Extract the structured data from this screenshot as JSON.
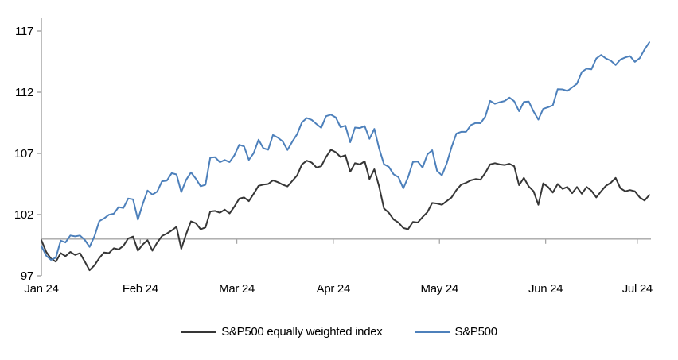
{
  "legend": {
    "items": [
      {
        "label": "S&P500 equally weighted index",
        "series": "sp500-equal-weight"
      },
      {
        "label": "S&P500",
        "series": "sp500"
      }
    ]
  },
  "chart_data": {
    "type": "line",
    "title": "",
    "xlabel": "",
    "ylabel": "",
    "ylim": [
      97,
      118
    ],
    "y_ticks": [
      97,
      102,
      107,
      112,
      117
    ],
    "baseline_value": 100,
    "grid": false,
    "legend_position": "bottom-center",
    "axis_color": "#999999",
    "baseline_color": "#a6a6a6",
    "x_ticks": [
      {
        "label": "Jan 24",
        "index": 0
      },
      {
        "label": "Feb 24",
        "index": 21
      },
      {
        "label": "Mar 24",
        "index": 41
      },
      {
        "label": "Apr 24",
        "index": 61
      },
      {
        "label": "May 24",
        "index": 83
      },
      {
        "label": "Jun 24",
        "index": 105
      },
      {
        "label": "Jul 24",
        "index": 124
      }
    ],
    "x": [
      "2024-01-02",
      "2024-01-03",
      "2024-01-04",
      "2024-01-05",
      "2024-01-08",
      "2024-01-09",
      "2024-01-10",
      "2024-01-11",
      "2024-01-12",
      "2024-01-16",
      "2024-01-17",
      "2024-01-18",
      "2024-01-19",
      "2024-01-22",
      "2024-01-23",
      "2024-01-24",
      "2024-01-25",
      "2024-01-26",
      "2024-01-29",
      "2024-01-30",
      "2024-01-31",
      "2024-02-01",
      "2024-02-02",
      "2024-02-05",
      "2024-02-06",
      "2024-02-07",
      "2024-02-08",
      "2024-02-09",
      "2024-02-12",
      "2024-02-13",
      "2024-02-14",
      "2024-02-15",
      "2024-02-16",
      "2024-02-20",
      "2024-02-21",
      "2024-02-22",
      "2024-02-23",
      "2024-02-26",
      "2024-02-27",
      "2024-02-28",
      "2024-02-29",
      "2024-03-01",
      "2024-03-04",
      "2024-03-05",
      "2024-03-06",
      "2024-03-07",
      "2024-03-08",
      "2024-03-11",
      "2024-03-12",
      "2024-03-13",
      "2024-03-14",
      "2024-03-15",
      "2024-03-18",
      "2024-03-19",
      "2024-03-20",
      "2024-03-21",
      "2024-03-22",
      "2024-03-25",
      "2024-03-26",
      "2024-03-27",
      "2024-03-28",
      "2024-04-01",
      "2024-04-02",
      "2024-04-03",
      "2024-04-04",
      "2024-04-05",
      "2024-04-08",
      "2024-04-09",
      "2024-04-10",
      "2024-04-11",
      "2024-04-12",
      "2024-04-15",
      "2024-04-16",
      "2024-04-17",
      "2024-04-18",
      "2024-04-19",
      "2024-04-22",
      "2024-04-23",
      "2024-04-24",
      "2024-04-25",
      "2024-04-26",
      "2024-04-29",
      "2024-04-30",
      "2024-05-01",
      "2024-05-02",
      "2024-05-03",
      "2024-05-06",
      "2024-05-07",
      "2024-05-08",
      "2024-05-09",
      "2024-05-10",
      "2024-05-13",
      "2024-05-14",
      "2024-05-15",
      "2024-05-16",
      "2024-05-17",
      "2024-05-20",
      "2024-05-21",
      "2024-05-22",
      "2024-05-23",
      "2024-05-24",
      "2024-05-28",
      "2024-05-29",
      "2024-05-30",
      "2024-05-31",
      "2024-06-03",
      "2024-06-04",
      "2024-06-05",
      "2024-06-06",
      "2024-06-07",
      "2024-06-10",
      "2024-06-11",
      "2024-06-12",
      "2024-06-13",
      "2024-06-14",
      "2024-06-17",
      "2024-06-18",
      "2024-06-20",
      "2024-06-21",
      "2024-06-24",
      "2024-06-25",
      "2024-06-26",
      "2024-06-27",
      "2024-06-28",
      "2024-07-01",
      "2024-07-02",
      "2024-07-03"
    ],
    "series": [
      {
        "name": "S&P500 equally weighted index",
        "color": "#363636",
        "values": [
          99.9,
          98.95,
          98.4,
          98.15,
          98.85,
          98.6,
          98.95,
          98.7,
          98.85,
          98.15,
          97.45,
          97.85,
          98.45,
          98.9,
          98.85,
          99.25,
          99.15,
          99.45,
          100.05,
          100.2,
          99.05,
          99.55,
          99.9,
          99.05,
          99.7,
          100.25,
          100.45,
          100.7,
          101.0,
          99.2,
          100.4,
          101.45,
          101.3,
          100.8,
          100.95,
          102.25,
          102.3,
          102.15,
          102.4,
          102.1,
          102.65,
          103.3,
          103.4,
          103.1,
          103.7,
          104.35,
          104.45,
          104.5,
          104.8,
          104.65,
          104.45,
          104.3,
          104.75,
          105.2,
          106.1,
          106.4,
          106.25,
          105.85,
          105.95,
          106.7,
          107.3,
          107.1,
          106.7,
          106.85,
          105.5,
          106.2,
          106.1,
          106.35,
          104.9,
          105.7,
          104.3,
          102.5,
          102.15,
          101.6,
          101.35,
          100.9,
          100.8,
          101.4,
          101.35,
          101.8,
          102.2,
          102.95,
          102.9,
          102.8,
          103.1,
          103.4,
          104.0,
          104.45,
          104.6,
          104.8,
          104.9,
          104.85,
          105.4,
          106.1,
          106.2,
          106.1,
          106.05,
          106.15,
          105.95,
          104.4,
          105.0,
          104.3,
          103.9,
          102.8,
          104.55,
          104.25,
          103.8,
          104.5,
          104.1,
          104.25,
          103.75,
          104.25,
          103.7,
          104.25,
          103.95,
          103.4,
          103.9,
          104.35,
          104.6,
          105.0,
          104.15,
          103.9,
          104.0,
          103.9,
          103.4,
          103.15,
          103.6
        ]
      },
      {
        "name": "S&P500",
        "color": "#4d80bb",
        "values": [
          99.43,
          98.64,
          98.3,
          98.48,
          99.87,
          99.72,
          100.29,
          100.22,
          100.29,
          99.92,
          99.36,
          100.23,
          101.47,
          101.69,
          101.99,
          102.07,
          102.61,
          102.54,
          103.31,
          103.25,
          101.59,
          102.86,
          103.96,
          103.63,
          103.87,
          104.72,
          104.78,
          105.38,
          105.28,
          103.84,
          104.84,
          105.45,
          104.94,
          104.31,
          104.44,
          106.65,
          106.69,
          106.28,
          106.46,
          106.29,
          106.84,
          107.7,
          107.57,
          106.47,
          107.02,
          108.12,
          107.42,
          107.3,
          108.5,
          108.29,
          107.98,
          107.28,
          107.96,
          108.57,
          109.53,
          109.89,
          109.74,
          109.4,
          109.09,
          110.04,
          110.16,
          109.94,
          109.14,
          109.26,
          107.91,
          109.11,
          109.07,
          109.23,
          108.19,
          109.0,
          107.41,
          106.12,
          105.9,
          105.29,
          105.06,
          104.14,
          105.05,
          106.3,
          106.33,
          105.84,
          106.92,
          107.26,
          105.57,
          105.21,
          106.17,
          107.5,
          108.62,
          108.76,
          108.76,
          109.31,
          109.49,
          109.47,
          110.0,
          111.29,
          111.05,
          111.18,
          111.28,
          111.56,
          111.26,
          110.44,
          111.21,
          111.24,
          110.42,
          109.76,
          110.64,
          110.77,
          110.93,
          112.25,
          112.23,
          112.1,
          112.39,
          112.69,
          113.65,
          113.92,
          113.87,
          114.75,
          115.04,
          114.75,
          114.57,
          114.22,
          114.66,
          114.84,
          114.95,
          114.48,
          114.78,
          115.49,
          116.08
        ]
      }
    ]
  }
}
